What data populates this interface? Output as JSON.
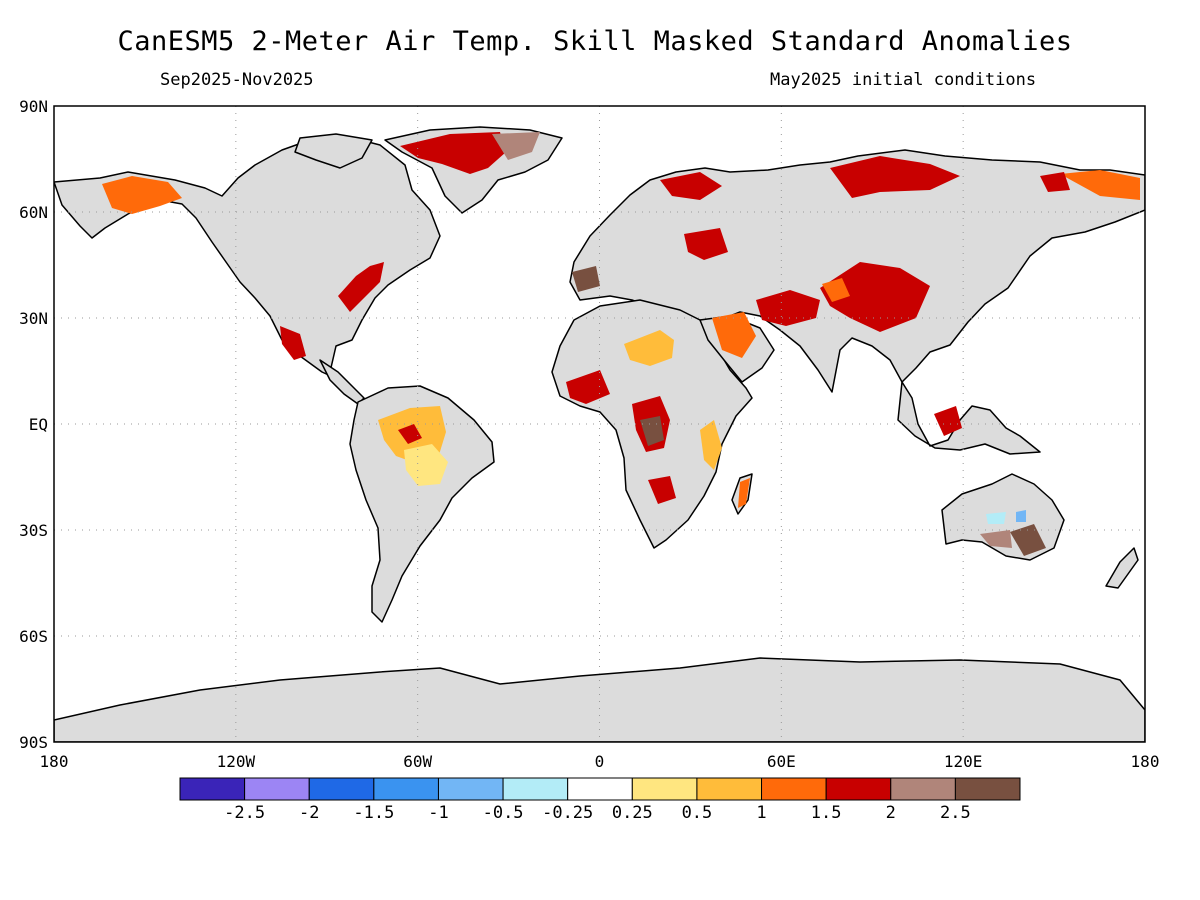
{
  "map": {
    "title": "CanESM5 2-Meter Air Temp. Skill Masked Standard Anomalies",
    "period": "Sep2025-Nov2025",
    "init": "May2025 initial conditions",
    "lon_ticks": [
      {
        "lon": -180,
        "label": "180"
      },
      {
        "lon": -120,
        "label": "120W"
      },
      {
        "lon": -60,
        "label": "60W"
      },
      {
        "lon": 0,
        "label": "0"
      },
      {
        "lon": 60,
        "label": "60E"
      },
      {
        "lon": 120,
        "label": "120E"
      },
      {
        "lon": 180,
        "label": "180"
      }
    ],
    "lat_ticks": [
      {
        "lat": 90,
        "label": "90N"
      },
      {
        "lat": 60,
        "label": "60N"
      },
      {
        "lat": 30,
        "label": "30N"
      },
      {
        "lat": 0,
        "label": "EQ"
      },
      {
        "lat": -30,
        "label": "30S"
      },
      {
        "lat": -60,
        "label": "60S"
      },
      {
        "lat": -90,
        "label": "90S"
      }
    ],
    "land_color": "#dcdcdc",
    "coast_color": "#000000",
    "grid_color": "#9a9a9a"
  },
  "colorbar": {
    "colors": [
      "#3a24b8",
      "#9c85f4",
      "#1f69e6",
      "#3a93f0",
      "#72b6f5",
      "#b3ecf7",
      "#ffffff",
      "#ffe680",
      "#ffbc3a",
      "#ff6a0a",
      "#c80000",
      "#b0857a",
      "#785040"
    ],
    "labels": [
      "-2.5",
      "-2",
      "-1.5",
      "-1",
      "-0.5",
      "-0.25",
      "0.25",
      "0.5",
      "1",
      "1.5",
      "2",
      "2.5"
    ]
  },
  "anomaly_regions": [
    {
      "name": "alaska",
      "category": 1.5,
      "color": "#ff6a0a"
    },
    {
      "name": "greenland",
      "category": 2,
      "color": "#c80000"
    },
    {
      "name": "eastern-us",
      "category": 2,
      "color": "#c80000"
    },
    {
      "name": "mexico",
      "category": 2,
      "color": "#c80000"
    },
    {
      "name": "amazon",
      "category": 1,
      "color": "#ffbc3a"
    },
    {
      "name": "sahara",
      "category": 1,
      "color": "#ffbc3a"
    },
    {
      "name": "arabia",
      "category": 1.5,
      "color": "#ff6a0a"
    },
    {
      "name": "siberia",
      "category": 2,
      "color": "#c80000"
    },
    {
      "name": "tibet",
      "category": 2,
      "color": "#c80000"
    },
    {
      "name": "central-africa",
      "category": 2.5,
      "color": "#785040"
    },
    {
      "name": "australia-interior",
      "category": -0.25,
      "color": "#b3ecf7"
    }
  ]
}
